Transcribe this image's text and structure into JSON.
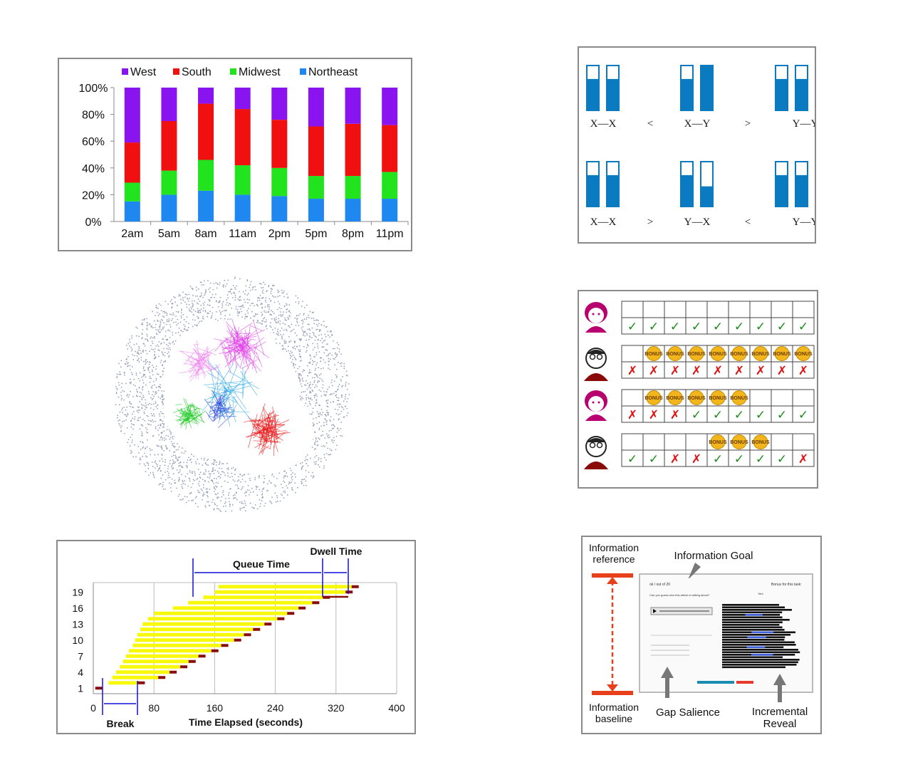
{
  "chart_data": [
    {
      "type": "bar",
      "stacked": true,
      "categories": [
        "2am",
        "5am",
        "8am",
        "11am",
        "2pm",
        "5pm",
        "8pm",
        "11pm"
      ],
      "series": [
        {
          "name": "Northeast",
          "color": "#1e87f0",
          "values": [
            15,
            20,
            23,
            20,
            19,
            17,
            17,
            17
          ]
        },
        {
          "name": "Midwest",
          "color": "#22e41e",
          "values": [
            14,
            18,
            23,
            22,
            21,
            17,
            17,
            20
          ]
        },
        {
          "name": "South",
          "color": "#f01010",
          "values": [
            30,
            37,
            42,
            42,
            36,
            37,
            39,
            35
          ]
        },
        {
          "name": "West",
          "color": "#8a14f0",
          "values": [
            41,
            25,
            12,
            16,
            24,
            29,
            27,
            28
          ]
        }
      ],
      "legend_order": [
        "West",
        "South",
        "Midwest",
        "Northeast"
      ],
      "yticks": [
        "0%",
        "20%",
        "40%",
        "60%",
        "80%",
        "100%"
      ],
      "ylim": [
        0,
        100
      ],
      "legend": "top",
      "grid": false
    },
    {
      "type": "bar",
      "note": "timeline of queued tasks",
      "xticks": [
        "0",
        "80",
        "160",
        "240",
        "320",
        "400"
      ],
      "yticks": [
        "1",
        "4",
        "7",
        "10",
        "13",
        "16",
        "19"
      ],
      "xlim": [
        0,
        400
      ],
      "xlabel": "Time Elapsed (seconds)",
      "annotations": [
        "Queue Time",
        "Dwell Time",
        "Break"
      ],
      "tasks": [
        {
          "id": 1,
          "start": 0,
          "end": 12
        },
        {
          "id": 2,
          "start": 20,
          "end": 68
        },
        {
          "id": 3,
          "start": 25,
          "end": 95
        },
        {
          "id": 4,
          "start": 30,
          "end": 110
        },
        {
          "id": 5,
          "start": 35,
          "end": 124
        },
        {
          "id": 6,
          "start": 39,
          "end": 135
        },
        {
          "id": 7,
          "start": 43,
          "end": 148
        },
        {
          "id": 8,
          "start": 47,
          "end": 165
        },
        {
          "id": 9,
          "start": 52,
          "end": 178
        },
        {
          "id": 10,
          "start": 55,
          "end": 195
        },
        {
          "id": 11,
          "start": 58,
          "end": 208
        },
        {
          "id": 12,
          "start": 62,
          "end": 220
        },
        {
          "id": 13,
          "start": 65,
          "end": 235
        },
        {
          "id": 14,
          "start": 72,
          "end": 252
        },
        {
          "id": 15,
          "start": 80,
          "end": 265
        },
        {
          "id": 16,
          "start": 105,
          "end": 280
        },
        {
          "id": 17,
          "start": 125,
          "end": 298
        },
        {
          "id": 18,
          "start": 145,
          "end": 312
        },
        {
          "id": 19,
          "start": 160,
          "end": 342
        },
        {
          "id": 20,
          "start": 165,
          "end": 350
        }
      ]
    }
  ],
  "diagram_top": {
    "labels": [
      "X—X",
      "<",
      "X—Y",
      ">",
      "Y—Y",
      "X—X",
      ">",
      "Y—X",
      "<",
      "Y—Y"
    ],
    "color": "#0a7bc0"
  },
  "bonus": {
    "bonus_label": "BONUS",
    "check": "✓",
    "cross": "✗",
    "rows": [
      {
        "person": "woman",
        "bonus": [
          0,
          0,
          0,
          0,
          0,
          0,
          0,
          0,
          0
        ],
        "marks": [
          "c",
          "c",
          "c",
          "c",
          "c",
          "c",
          "c",
          "c",
          "c"
        ]
      },
      {
        "person": "man",
        "bonus": [
          0,
          1,
          1,
          1,
          1,
          1,
          1,
          1,
          1
        ],
        "marks": [
          "x",
          "x",
          "x",
          "x",
          "x",
          "x",
          "x",
          "x",
          "x"
        ]
      },
      {
        "person": "woman",
        "bonus": [
          0,
          1,
          1,
          1,
          1,
          1,
          0,
          0,
          0
        ],
        "marks": [
          "x",
          "x",
          "x",
          "c",
          "c",
          "c",
          "c",
          "c",
          "c"
        ]
      },
      {
        "person": "man",
        "bonus": [
          0,
          0,
          0,
          0,
          1,
          1,
          1,
          0,
          0
        ],
        "marks": [
          "c",
          "c",
          "x",
          "x",
          "c",
          "c",
          "c",
          "c",
          "x"
        ]
      }
    ]
  },
  "info": {
    "info_reference": "Information\nreference",
    "info_goal": "Information Goal",
    "info_baseline": "Information\nbaseline",
    "gap_salience": "Gap Salience",
    "incremental_reveal": "Incremental\nReveal",
    "screen": {
      "counter": "ok / out of 20",
      "bonus_text": "Bonus for this task:",
      "question": "Can you guess who this article is talking about?",
      "heading": "Hint"
    }
  }
}
